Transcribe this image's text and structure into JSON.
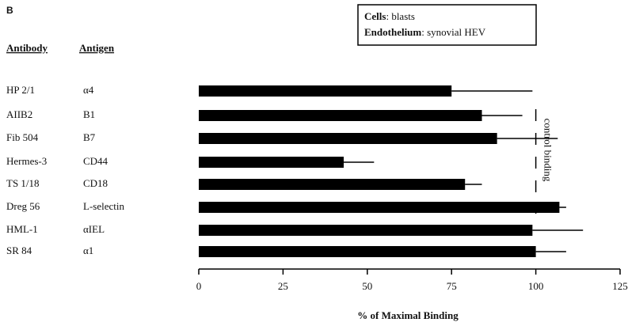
{
  "panel": "B",
  "legend": {
    "lines": [
      {
        "key": "Cells",
        "text": ": blasts"
      },
      {
        "key": "Endothelium",
        "text": ": synovial HEV"
      }
    ]
  },
  "chart_data": {
    "type": "hbar",
    "column_headers": [
      "Antibody",
      "Antigen"
    ],
    "antibodies": [
      "HP 2/1",
      "AIIB2",
      "Fib 504",
      "Hermes-3",
      "TS 1/18",
      "Dreg 56",
      "HML-1",
      "SR 84"
    ],
    "categories": [
      "α4",
      "B1",
      "B7",
      "CD44",
      "CD18",
      "L-selectin",
      "αIEL",
      "α1"
    ],
    "values": [
      75,
      84,
      88.5,
      43,
      79,
      107,
      99,
      100
    ],
    "errors": [
      24,
      12,
      18,
      9,
      5,
      2,
      15,
      9
    ],
    "color": "#000000",
    "xlim": [
      0,
      125
    ],
    "xticks": [
      0,
      25,
      50,
      75,
      100,
      125
    ],
    "xlabel": "% of Maximal Binding",
    "reference_line": {
      "value": 100,
      "label": "control binding"
    }
  }
}
